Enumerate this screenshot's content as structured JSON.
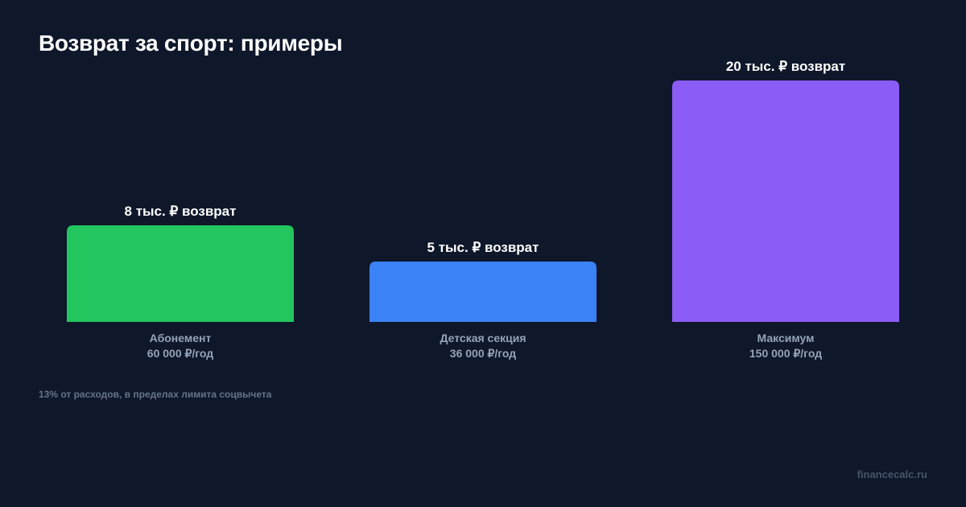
{
  "title": "Возврат за спорт: примеры",
  "note": "13% от расходов, в пределах лимита соцвычета",
  "footer": "financecalc.ru",
  "chart_data": {
    "type": "bar",
    "categories": [
      "Абонемент",
      "Детская секция",
      "Максимум"
    ],
    "sublabels": [
      "60 000 ₽/год",
      "36 000 ₽/год",
      "150 000 ₽/год"
    ],
    "values": [
      8,
      5,
      20
    ],
    "value_labels": [
      "8 тыс. ₽ возврат",
      "5 тыс. ₽ возврат",
      "20 тыс. ₽ возврат"
    ],
    "colors": [
      "#22c55e",
      "#3b82f6",
      "#8b5cf6"
    ],
    "ylim": [
      0,
      20
    ],
    "grid": false
  }
}
